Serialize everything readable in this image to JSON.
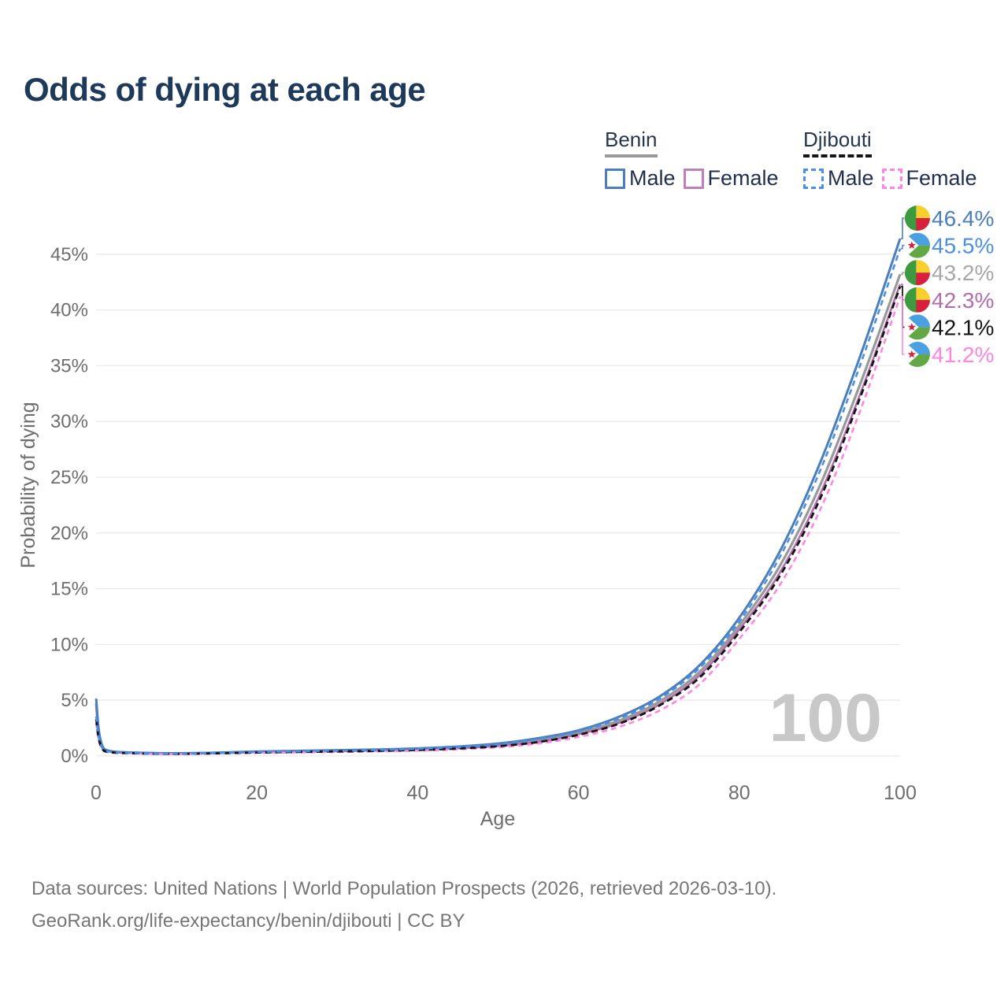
{
  "title": "Odds of dying at each age",
  "legend": {
    "groups": [
      {
        "label": "Benin",
        "line_color": "#999999",
        "line_style": "solid",
        "items": [
          {
            "label": "Male",
            "color": "#4a7ebc",
            "style": "solid"
          },
          {
            "label": "Female",
            "color": "#c07fb8",
            "style": "solid"
          }
        ]
      },
      {
        "label": "Djibouti",
        "line_color": "#141414",
        "line_style": "dashed",
        "items": [
          {
            "label": "Male",
            "color": "#4a90e8",
            "style": "dashed"
          },
          {
            "label": "Female",
            "color": "#ff85e1",
            "style": "dashed"
          }
        ]
      }
    ]
  },
  "watermark": "100",
  "footer": {
    "line1": "Data sources: United Nations | World Population Prospects (2026, retrieved 2026-03-10).",
    "line2": "GeoRank.org/life-expectancy/benin/djibouti | CC BY"
  },
  "chart_data": {
    "type": "line",
    "title": "Odds of dying at each age",
    "xlabel": "Age",
    "ylabel": "Probability of dying",
    "y_unit": "percent",
    "xlim": [
      0,
      100
    ],
    "ylim": [
      0,
      47
    ],
    "grid": "horizontal",
    "legend_position": "top-right",
    "xticks": [
      {
        "value": 0,
        "label": "0"
      },
      {
        "value": 20,
        "label": "20"
      },
      {
        "value": 40,
        "label": "40"
      },
      {
        "value": 60,
        "label": "60"
      },
      {
        "value": 80,
        "label": "80"
      },
      {
        "value": 100,
        "label": "100"
      }
    ],
    "yticks": [
      {
        "value": 0,
        "label": "0%"
      },
      {
        "value": 5,
        "label": "5%"
      },
      {
        "value": 10,
        "label": "10%"
      },
      {
        "value": 15,
        "label": "15%"
      },
      {
        "value": 20,
        "label": "20%"
      },
      {
        "value": 25,
        "label": "25%"
      },
      {
        "value": 30,
        "label": "30%"
      },
      {
        "value": 35,
        "label": "35%"
      },
      {
        "value": 40,
        "label": "40%"
      },
      {
        "value": 45,
        "label": "45%"
      }
    ],
    "ages": [
      0,
      1,
      5,
      10,
      15,
      20,
      25,
      30,
      35,
      40,
      45,
      50,
      55,
      60,
      65,
      70,
      75,
      80,
      85,
      90,
      95,
      100
    ],
    "series": [
      {
        "id": "benin_male",
        "country": "Benin",
        "sex": "Male",
        "color": "#4a7ebc",
        "dash": null,
        "width": 3,
        "values": [
          5.15,
          0.62,
          0.3,
          0.25,
          0.3,
          0.4,
          0.46,
          0.52,
          0.58,
          0.68,
          0.85,
          1.12,
          1.6,
          2.3,
          3.5,
          5.3,
          8.1,
          12.4,
          18.3,
          26.2,
          35.8,
          46.4
        ]
      },
      {
        "id": "benin_female",
        "country": "Benin",
        "sex": "Female",
        "color": "#b06dac",
        "dash": null,
        "width": 2.6,
        "values": [
          4.45,
          0.52,
          0.26,
          0.21,
          0.26,
          0.34,
          0.38,
          0.43,
          0.48,
          0.56,
          0.69,
          0.9,
          1.28,
          1.95,
          2.95,
          4.6,
          7.2,
          11.35,
          16.4,
          23.4,
          32.4,
          42.3
        ]
      },
      {
        "id": "benin_total",
        "country": "Benin",
        "sex": "Both",
        "color": "#999999",
        "dash": null,
        "width": 3.2,
        "values": [
          4.7,
          0.57,
          0.28,
          0.23,
          0.28,
          0.37,
          0.42,
          0.48,
          0.53,
          0.62,
          0.77,
          1.0,
          1.44,
          2.1,
          3.15,
          4.85,
          7.5,
          11.7,
          17.0,
          24.2,
          33.3,
          43.2
        ]
      },
      {
        "id": "djibouti_male",
        "country": "Djibouti",
        "sex": "Male",
        "color": "#4a90e8",
        "dash": "7 5",
        "width": 2.6,
        "values": [
          3.55,
          0.5,
          0.26,
          0.21,
          0.26,
          0.36,
          0.42,
          0.48,
          0.54,
          0.64,
          0.8,
          1.06,
          1.52,
          2.2,
          3.35,
          5.1,
          7.85,
          12.05,
          17.8,
          25.5,
          35.0,
          45.5
        ]
      },
      {
        "id": "djibouti_female",
        "country": "Djibouti",
        "sex": "Female",
        "color": "#ff85e1",
        "dash": "7 5",
        "width": 2.6,
        "values": [
          2.95,
          0.42,
          0.22,
          0.17,
          0.22,
          0.28,
          0.32,
          0.36,
          0.41,
          0.48,
          0.59,
          0.78,
          1.12,
          1.7,
          2.6,
          4.05,
          6.4,
          10.5,
          15.3,
          22.0,
          30.9,
          41.2
        ]
      },
      {
        "id": "djibouti_total",
        "country": "Djibouti",
        "sex": "Both",
        "color": "#141414",
        "dash": "8 5",
        "width": 2.8,
        "values": [
          3.3,
          0.46,
          0.24,
          0.19,
          0.24,
          0.31,
          0.36,
          0.41,
          0.46,
          0.54,
          0.67,
          0.88,
          1.25,
          1.9,
          2.88,
          4.5,
          7.0,
          11.1,
          16.1,
          23.0,
          32.1,
          42.1
        ]
      }
    ],
    "draw_order": [
      "benin_total",
      "benin_female",
      "benin_male",
      "djibouti_female",
      "djibouti_total",
      "djibouti_male"
    ],
    "end_labels": [
      {
        "series": "benin_male",
        "flag": "benin",
        "value": "46.4%",
        "color": "#4a7ebc"
      },
      {
        "series": "djibouti_male",
        "flag": "djibouti",
        "value": "45.5%",
        "color": "#4a90e2"
      },
      {
        "series": "benin_total",
        "flag": "benin",
        "value": "43.2%",
        "color": "#a8a8a8"
      },
      {
        "series": "benin_female",
        "flag": "benin",
        "value": "42.3%",
        "color": "#b06dac"
      },
      {
        "series": "djibouti_total",
        "flag": "djibouti",
        "value": "42.1%",
        "color": "#141414"
      },
      {
        "series": "djibouti_female",
        "flag": "djibouti",
        "value": "41.2%",
        "color": "#ff85e1"
      }
    ],
    "flag_colors": {
      "benin": {
        "green": "#3d9b3f",
        "yellow": "#f8d02e",
        "red": "#d8203c"
      },
      "djibouti": {
        "blue": "#4aa0e0",
        "green": "#62a844",
        "white": "#ffffff",
        "star": "#d8203c"
      }
    }
  }
}
